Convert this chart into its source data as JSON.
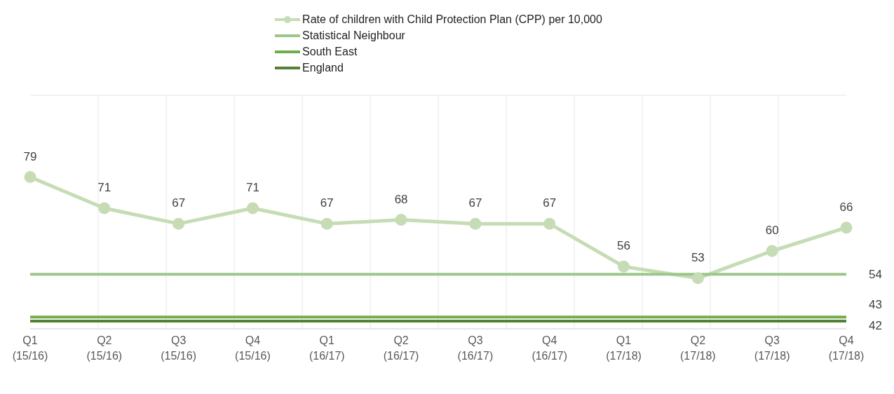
{
  "chart_data": {
    "type": "line",
    "categories": [
      "Q1 (15/16)",
      "Q2 (15/16)",
      "Q3 (15/16)",
      "Q4 (15/16)",
      "Q1 (16/17)",
      "Q2 (16/17)",
      "Q3 (16/17)",
      "Q4 (16/17)",
      "Q1 (17/18)",
      "Q2 (17/18)",
      "Q3 (17/18)",
      "Q4 (17/18)"
    ],
    "series": [
      {
        "name": "Rate of children with Child Protection Plan (CPP)  per 10,000",
        "color": "#c5dcb5",
        "marker": "circle",
        "values": [
          79,
          71,
          67,
          71,
          67,
          68,
          67,
          67,
          56,
          53,
          60,
          66
        ],
        "value_labels": [
          "79",
          "71",
          "67",
          "71",
          "67",
          "68",
          "67",
          "67",
          "56",
          "53",
          "60",
          "66"
        ]
      },
      {
        "name": "Statistical Neighbour",
        "color": "#9cc68a",
        "marker": "none",
        "values": [
          54,
          54,
          54,
          54,
          54,
          54,
          54,
          54,
          54,
          54,
          54,
          54
        ],
        "value_labels": [
          null,
          null,
          null,
          null,
          null,
          null,
          null,
          null,
          null,
          null,
          null,
          "54"
        ]
      },
      {
        "name": "South East",
        "color": "#70ad47",
        "marker": "none",
        "values": [
          43,
          43,
          43,
          43,
          43,
          43,
          43,
          43,
          43,
          43,
          43,
          43
        ],
        "value_labels": [
          null,
          null,
          null,
          null,
          null,
          null,
          null,
          null,
          null,
          null,
          null,
          "43"
        ]
      },
      {
        "name": "England",
        "color": "#548235",
        "marker": "none",
        "values": [
          42,
          42,
          42,
          42,
          42,
          42,
          42,
          42,
          42,
          42,
          42,
          42
        ],
        "value_labels": [
          null,
          null,
          null,
          null,
          null,
          null,
          null,
          null,
          null,
          null,
          null,
          "42"
        ]
      }
    ],
    "ylim": [
      40,
      100
    ],
    "tick_labels": "x",
    "grid": true,
    "legend": "top",
    "line_style": "solid"
  }
}
